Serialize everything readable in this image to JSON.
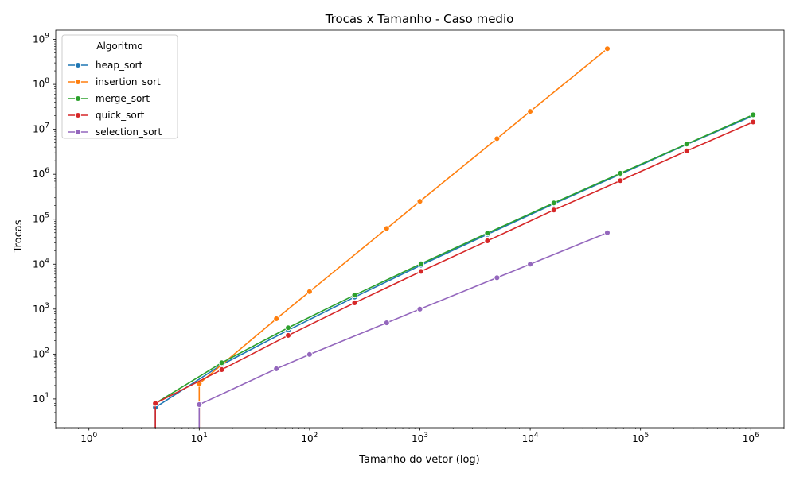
{
  "chart_data": {
    "type": "line",
    "title": "Trocas x Tamanho - Caso medio",
    "xlabel": "Tamanho do vetor (log)",
    "ylabel": "Trocas",
    "xscale": "log",
    "yscale": "log",
    "xlim": [
      0.5,
      2000000
    ],
    "ylim": [
      2.3,
      1600000000
    ],
    "xticks": [
      {
        "value": 1,
        "base": "10",
        "exp": "0"
      },
      {
        "value": 10,
        "base": "10",
        "exp": "1"
      },
      {
        "value": 100,
        "base": "10",
        "exp": "2"
      },
      {
        "value": 1000,
        "base": "10",
        "exp": "3"
      },
      {
        "value": 10000,
        "base": "10",
        "exp": "4"
      },
      {
        "value": 100000,
        "base": "10",
        "exp": "5"
      },
      {
        "value": 1000000,
        "base": "10",
        "exp": "6"
      }
    ],
    "yticks": [
      {
        "value": 10,
        "base": "10",
        "exp": "1"
      },
      {
        "value": 100,
        "base": "10",
        "exp": "2"
      },
      {
        "value": 1000,
        "base": "10",
        "exp": "3"
      },
      {
        "value": 10000,
        "base": "10",
        "exp": "4"
      },
      {
        "value": 100000,
        "base": "10",
        "exp": "5"
      },
      {
        "value": 1000000,
        "base": "10",
        "exp": "6"
      },
      {
        "value": 10000000,
        "base": "10",
        "exp": "7"
      },
      {
        "value": 100000000,
        "base": "10",
        "exp": "8"
      },
      {
        "value": 1000000000,
        "base": "10",
        "exp": "9"
      }
    ],
    "grid": false,
    "legend": {
      "title": "Algoritmo",
      "placement": "upper-left"
    },
    "series": [
      {
        "name": "heap_sort",
        "color": "#1f77b4",
        "points": [
          [
            4,
            0
          ],
          [
            4,
            6.5
          ],
          [
            16,
            58
          ],
          [
            64,
            340
          ],
          [
            256,
            1850
          ],
          [
            1024,
            9500
          ],
          [
            4096,
            46000
          ],
          [
            16384,
            220000
          ],
          [
            65536,
            1000000
          ],
          [
            262144,
            4600000
          ],
          [
            1048576,
            20000000
          ]
        ]
      },
      {
        "name": "insertion_sort",
        "color": "#ff7f0e",
        "points": [
          [
            10,
            0
          ],
          [
            10,
            22
          ],
          [
            50,
            610
          ],
          [
            100,
            2450
          ],
          [
            500,
            62000
          ],
          [
            1000,
            250000
          ],
          [
            5000,
            6200000
          ],
          [
            10000,
            25000000
          ],
          [
            50000,
            620000000
          ]
        ]
      },
      {
        "name": "merge_sort",
        "color": "#2ca02c",
        "points": [
          [
            4,
            8
          ],
          [
            16,
            64
          ],
          [
            64,
            385
          ],
          [
            256,
            2050
          ],
          [
            1024,
            10200
          ],
          [
            4096,
            49000
          ],
          [
            16384,
            230000
          ],
          [
            65536,
            1050000
          ],
          [
            262144,
            4700000
          ],
          [
            1048576,
            21000000
          ]
        ]
      },
      {
        "name": "quick_sort",
        "color": "#d62728",
        "points": [
          [
            4,
            0
          ],
          [
            4,
            8
          ],
          [
            16,
            45
          ],
          [
            64,
            260
          ],
          [
            256,
            1380
          ],
          [
            1024,
            6900
          ],
          [
            4096,
            33000
          ],
          [
            16384,
            160000
          ],
          [
            65536,
            720000
          ],
          [
            262144,
            3300000
          ],
          [
            1048576,
            14500000
          ]
        ]
      },
      {
        "name": "selection_sort",
        "color": "#9467bd",
        "points": [
          [
            10,
            0
          ],
          [
            10,
            7.5
          ],
          [
            50,
            47
          ],
          [
            100,
            98
          ],
          [
            500,
            495
          ],
          [
            1000,
            1000
          ],
          [
            5000,
            5000
          ],
          [
            10000,
            10000
          ],
          [
            50000,
            50000
          ]
        ]
      }
    ]
  }
}
